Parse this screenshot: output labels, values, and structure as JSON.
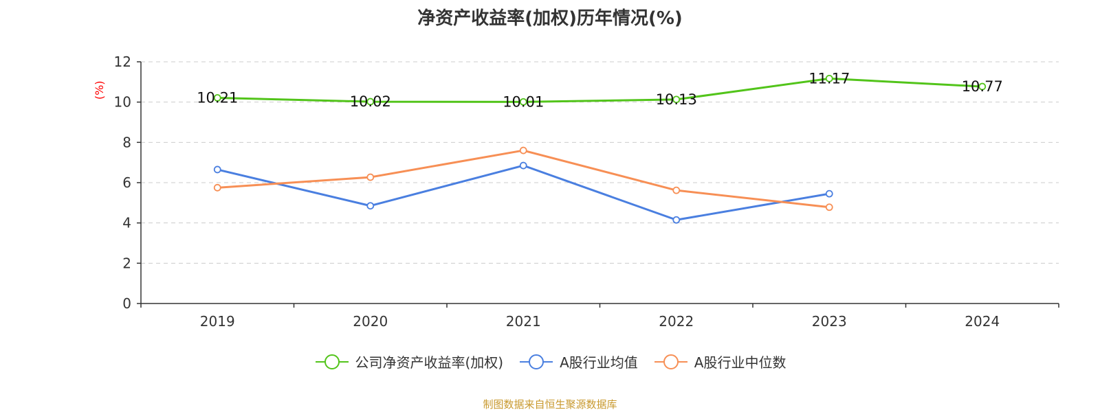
{
  "chart_data": {
    "type": "line",
    "title": "净资产收益率(加权)历年情况(%)",
    "ylabel": "(%)",
    "categories": [
      "2019",
      "2020",
      "2021",
      "2022",
      "2023",
      "2024"
    ],
    "ylim": [
      0,
      12
    ],
    "yticks": [
      0,
      2,
      4,
      6,
      8,
      10,
      12
    ],
    "grid": true,
    "legend_position": "bottom",
    "series": [
      {
        "name": "公司净资产收益率(加权)",
        "color": "#52c41a",
        "values": [
          10.21,
          10.02,
          10.01,
          10.13,
          11.17,
          10.77
        ],
        "labels": [
          "10.21",
          "10.02",
          "10.01",
          "10.13",
          "11.17",
          "10.77"
        ]
      },
      {
        "name": "A股行业均值",
        "color": "#4a7fe0",
        "values": [
          6.65,
          4.85,
          6.85,
          4.15,
          5.45,
          null
        ]
      },
      {
        "name": "A股行业中位数",
        "color": "#f78f55",
        "values": [
          5.75,
          6.27,
          7.6,
          5.62,
          4.78,
          null
        ]
      }
    ]
  },
  "source": "制图数据来自恒生聚源数据库"
}
